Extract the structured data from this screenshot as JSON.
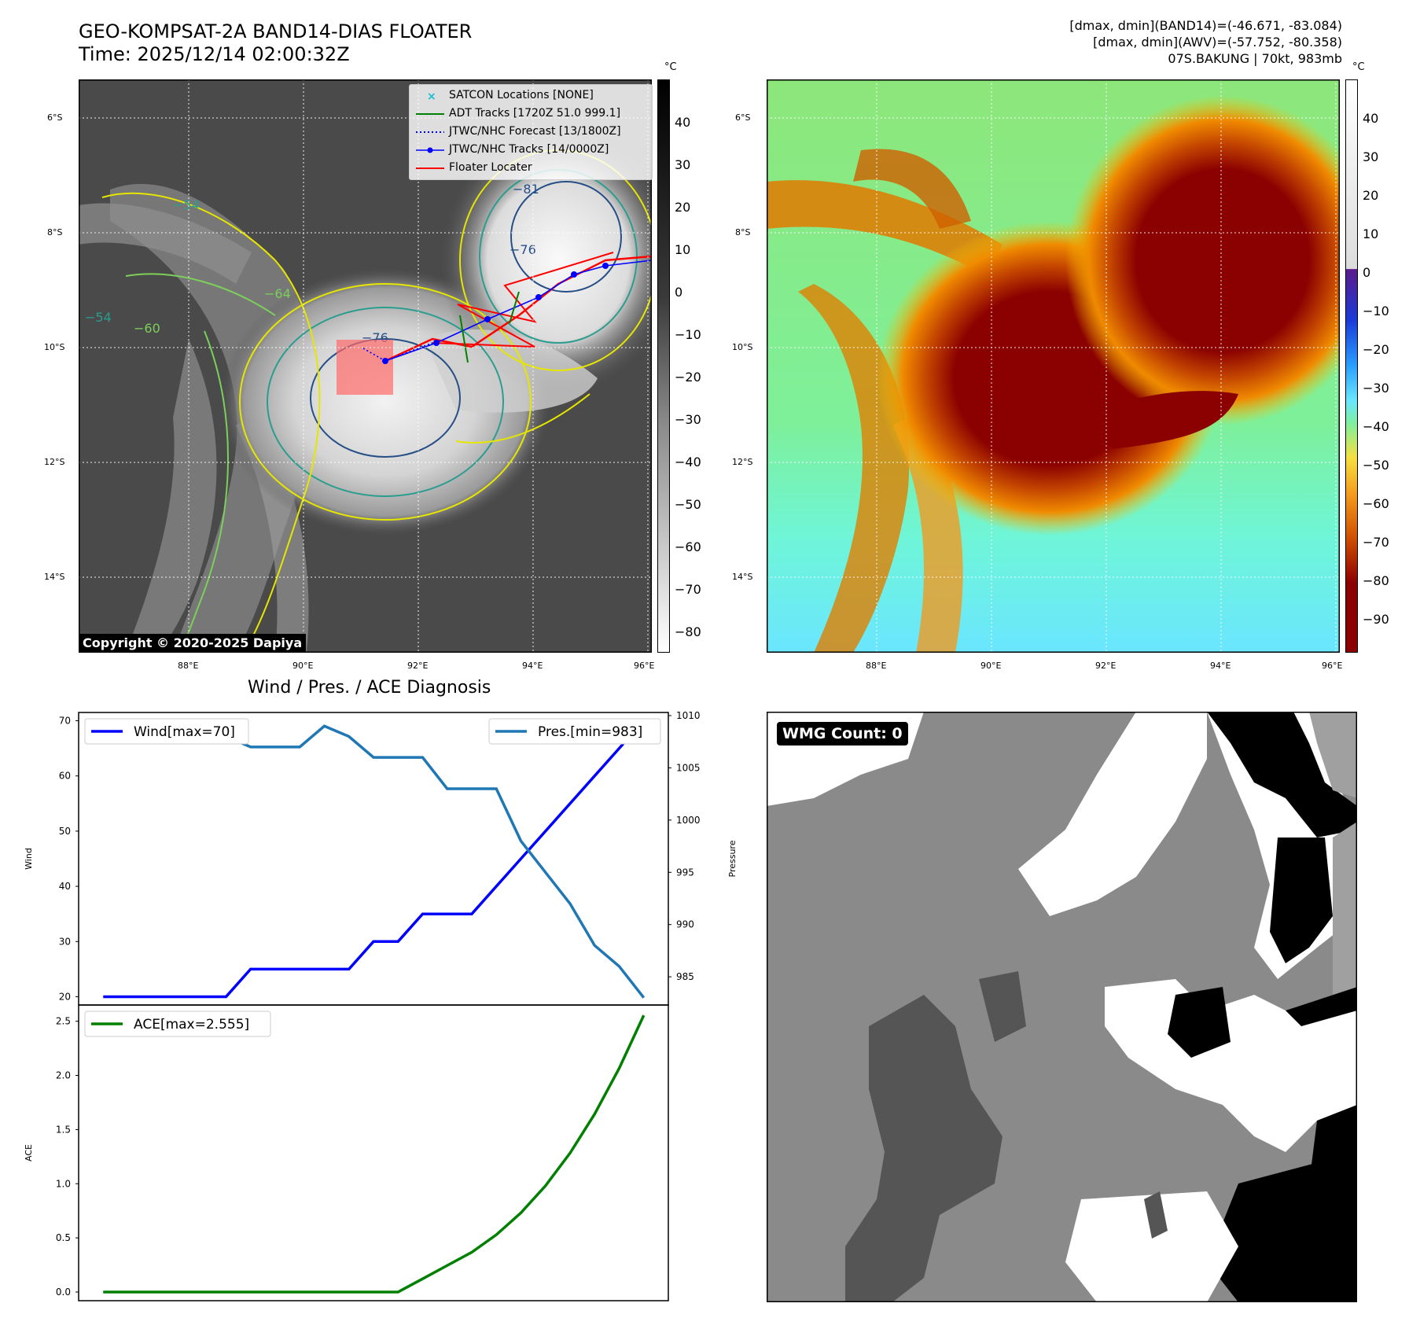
{
  "header": {
    "title_line1": "GEO-KOMPSAT-2A BAND14-DIAS FLOATER",
    "title_line2": "Time: 2025/12/14 02:00:32Z",
    "stats_line1": "[dmax, dmin](BAND14)=(-46.671, -83.084)",
    "stats_line2": "[dmax, dmin](AWV)=(-57.752, -80.358)",
    "stats_line3": "07S.BAKUNG | 70kt, 983mb"
  },
  "map": {
    "lat_labels": [
      "6°S",
      "8°S",
      "10°S",
      "12°S",
      "14°S"
    ],
    "lon_labels": [
      "88°E",
      "90°E",
      "92°E",
      "94°E",
      "96°E"
    ],
    "copyright": "Copyright © 2020-2025 Dapiya",
    "unit": "°C",
    "ir_colorbar_ticks": [
      "40",
      "30",
      "20",
      "10",
      "0",
      "−10",
      "−20",
      "−30",
      "−40",
      "−50",
      "−60",
      "−70",
      "−80"
    ],
    "awv_colorbar_ticks": [
      "40",
      "30",
      "20",
      "10",
      "0",
      "−10",
      "−20",
      "−30",
      "−40",
      "−50",
      "−60",
      "−70",
      "−80",
      "−90"
    ],
    "contour_labels": [
      "−81",
      "−76",
      "−76",
      "−64",
      "−54",
      "−54",
      "−60"
    ],
    "legend": [
      {
        "label": "SATCON Locations [NONE]",
        "color": "#17becf"
      },
      {
        "label": "ADT Tracks [1720Z 51.0 999.1]",
        "color": "#008000"
      },
      {
        "label": "JTWC/NHC Forecast [13/1800Z]",
        "color": "#0000ff"
      },
      {
        "label": "JTWC/NHC Tracks [14/0000Z]",
        "color": "#0000ff"
      },
      {
        "label": "Floater Locater",
        "color": "#ff0000"
      }
    ]
  },
  "chart_data": [
    {
      "type": "line",
      "title": "Wind / Pres. / ACE Diagnosis",
      "ylabel": "Wind",
      "y2label": "Pressure",
      "ylim": [
        18.5,
        71.5
      ],
      "y2lim": [
        982.3,
        1010.3
      ],
      "y_ticks": [
        20,
        30,
        40,
        50,
        60,
        70
      ],
      "y2_ticks": [
        985,
        990,
        995,
        1000,
        1005,
        1010
      ],
      "x": [
        0,
        1,
        2,
        3,
        4,
        5,
        6,
        7,
        8,
        9,
        10,
        11,
        12,
        13,
        14,
        15,
        16,
        17,
        18,
        19,
        20,
        21,
        22
      ],
      "series": [
        {
          "name": "Wind[max=70]",
          "color": "#0000ff",
          "axis": "left",
          "values": [
            20,
            20,
            20,
            20,
            20,
            20,
            25,
            25,
            25,
            25,
            25,
            30,
            30,
            35,
            35,
            35,
            40,
            45,
            50,
            55,
            60,
            65,
            70
          ]
        },
        {
          "name": "Pres.[min=983]",
          "color": "#1f77b4",
          "axis": "right",
          "values": [
            1008,
            1008,
            1008,
            1008,
            1008,
            1008,
            1007,
            1007,
            1007,
            1009,
            1008,
            1006,
            1006,
            1006,
            1003,
            1003,
            1003,
            998,
            995,
            992,
            988,
            986,
            983
          ]
        }
      ]
    },
    {
      "type": "line",
      "ylabel": "ACE",
      "ylim": [
        -0.08,
        2.65
      ],
      "y_ticks": [
        "0.0",
        "0.5",
        "1.0",
        "1.5",
        "2.0",
        "2.5"
      ],
      "x": [
        0,
        1,
        2,
        3,
        4,
        5,
        6,
        7,
        8,
        9,
        10,
        11,
        12,
        13,
        14,
        15,
        16,
        17,
        18,
        19,
        20,
        21,
        22
      ],
      "series": [
        {
          "name": "ACE[max=2.555]",
          "color": "#008000",
          "values": [
            0,
            0,
            0,
            0,
            0,
            0,
            0,
            0,
            0,
            0,
            0,
            0,
            0,
            0.122,
            0.245,
            0.367,
            0.529,
            0.731,
            0.981,
            1.283,
            1.643,
            2.066,
            2.555
          ]
        }
      ]
    }
  ],
  "wmg": {
    "label": "WMG Count: 0"
  }
}
